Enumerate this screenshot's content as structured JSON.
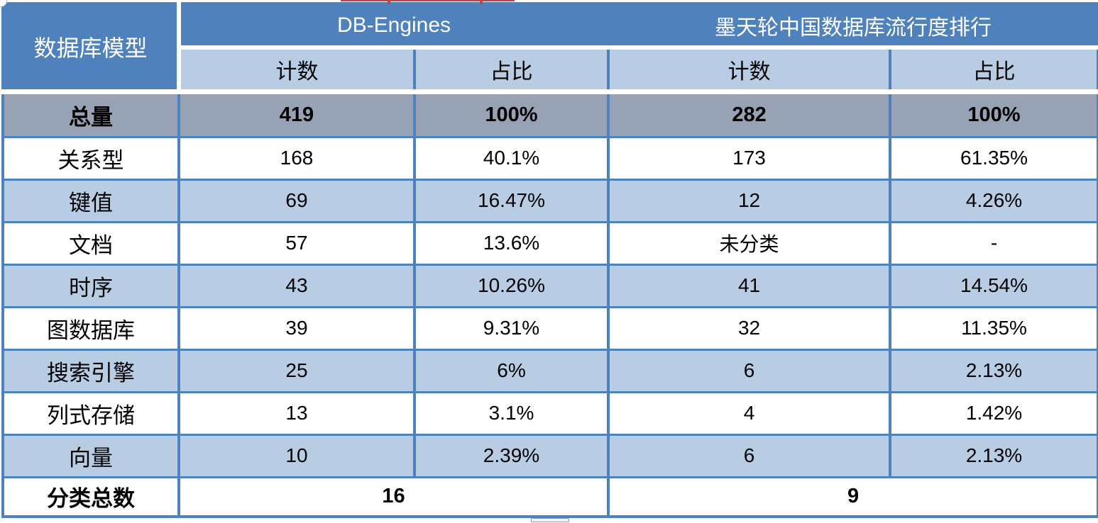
{
  "table": {
    "header": {
      "model_label": "数据库模型",
      "group1": "DB-Engines",
      "group2": "墨天轮中国数据库流行度排行",
      "count_label": "计数",
      "pct_label": "占比"
    },
    "total_row": {
      "label": "总量",
      "values": [
        "419",
        "100%",
        "282",
        "100%"
      ]
    },
    "rows": [
      {
        "label": "关系型",
        "values": [
          "168",
          "40.1%",
          "173",
          "61.35%"
        ]
      },
      {
        "label": "键值",
        "values": [
          "69",
          "16.47%",
          "12",
          "4.26%"
        ]
      },
      {
        "label": "文档",
        "values": [
          "57",
          "13.6%",
          "未分类",
          "-"
        ]
      },
      {
        "label": "时序",
        "values": [
          "43",
          "10.26%",
          "41",
          "14.54%"
        ]
      },
      {
        "label": "图数据库",
        "values": [
          "39",
          "9.31%",
          "32",
          "11.35%"
        ]
      },
      {
        "label": "搜索引擎",
        "values": [
          "25",
          "6%",
          "6",
          "2.13%"
        ]
      },
      {
        "label": "列式存储",
        "values": [
          "13",
          "3.1%",
          "4",
          "1.42%"
        ]
      },
      {
        "label": "向量",
        "values": [
          "10",
          "2.39%",
          "6",
          "2.13%"
        ]
      }
    ],
    "summary_row": {
      "label": "分类总数",
      "db_engines_total": "16",
      "modb_total": "9"
    },
    "colors": {
      "header_blue": "#4f81bd",
      "light_blue_row": "#b8cce4",
      "total_row_gray": "#97a2b4",
      "border_blue": "#4f81bd",
      "red_fragment": "#c4414f"
    }
  }
}
